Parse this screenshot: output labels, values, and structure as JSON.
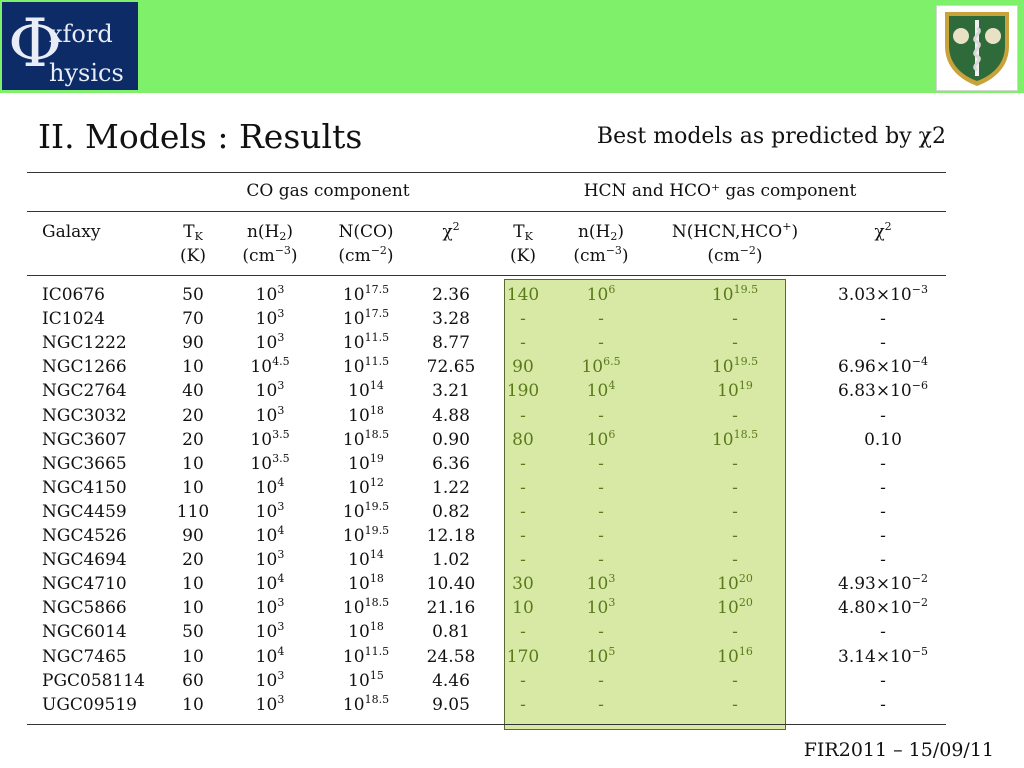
{
  "header": {
    "logo": {
      "phi": "Φ",
      "line1": "xford",
      "line2": "hysics"
    }
  },
  "slide": {
    "title": "II. Models : Results",
    "subtitle": "Best models as predicted by χ2"
  },
  "table": {
    "groups": [
      "CO gas component",
      "HCN and HCO⁺ gas component"
    ],
    "columns": [
      "Galaxy",
      "T_K (K)",
      "n(H2) (cm−3)",
      "N(CO) (cm−2)",
      "χ2",
      "T_K (K)",
      "n(H2) (cm−3)",
      "N(HCN,HCO+) (cm−2)",
      "χ2"
    ],
    "rows": [
      {
        "galaxy": "IC0676",
        "tk": "50",
        "nh2": "3",
        "nco": "17.5",
        "chi": "2.36",
        "tk2": "140",
        "nh22": "6",
        "nhcn": "19.5",
        "chi2m": "3.03",
        "chi2e": "−3"
      },
      {
        "galaxy": "IC1024",
        "tk": "70",
        "nh2": "3",
        "nco": "17.5",
        "chi": "3.28",
        "tk2": "-",
        "nh22": "-",
        "nhcn": "-",
        "chi2m": "-",
        "chi2e": ""
      },
      {
        "galaxy": "NGC1222",
        "tk": "90",
        "nh2": "3",
        "nco": "11.5",
        "chi": "8.77",
        "tk2": "-",
        "nh22": "-",
        "nhcn": "-",
        "chi2m": "-",
        "chi2e": ""
      },
      {
        "galaxy": "NGC1266",
        "tk": "10",
        "nh2": "4.5",
        "nco": "11.5",
        "chi": "72.65",
        "tk2": "90",
        "nh22": "6.5",
        "nhcn": "19.5",
        "chi2m": "6.96",
        "chi2e": "−4"
      },
      {
        "galaxy": "NGC2764",
        "tk": "40",
        "nh2": "3",
        "nco": "14",
        "chi": "3.21",
        "tk2": "190",
        "nh22": "4",
        "nhcn": "19",
        "chi2m": "6.83",
        "chi2e": "−6"
      },
      {
        "galaxy": "NGC3032",
        "tk": "20",
        "nh2": "3",
        "nco": "18",
        "chi": "4.88",
        "tk2": "-",
        "nh22": "-",
        "nhcn": "-",
        "chi2m": "-",
        "chi2e": ""
      },
      {
        "galaxy": "NGC3607",
        "tk": "20",
        "nh2": "3.5",
        "nco": "18.5",
        "chi": "0.90",
        "tk2": "80",
        "nh22": "6",
        "nhcn": "18.5",
        "chi2m": "0.10",
        "chi2e": ""
      },
      {
        "galaxy": "NGC3665",
        "tk": "10",
        "nh2": "3.5",
        "nco": "19",
        "chi": "6.36",
        "tk2": "-",
        "nh22": "-",
        "nhcn": "-",
        "chi2m": "-",
        "chi2e": ""
      },
      {
        "galaxy": "NGC4150",
        "tk": "10",
        "nh2": "4",
        "nco": "12",
        "chi": "1.22",
        "tk2": "-",
        "nh22": "-",
        "nhcn": "-",
        "chi2m": "-",
        "chi2e": ""
      },
      {
        "galaxy": "NGC4459",
        "tk": "110",
        "nh2": "3",
        "nco": "19.5",
        "chi": "0.82",
        "tk2": "-",
        "nh22": "-",
        "nhcn": "-",
        "chi2m": "-",
        "chi2e": ""
      },
      {
        "galaxy": "NGC4526",
        "tk": "90",
        "nh2": "4",
        "nco": "19.5",
        "chi": "12.18",
        "tk2": "-",
        "nh22": "-",
        "nhcn": "-",
        "chi2m": "-",
        "chi2e": ""
      },
      {
        "galaxy": "NGC4694",
        "tk": "20",
        "nh2": "3",
        "nco": "14",
        "chi": "1.02",
        "tk2": "-",
        "nh22": "-",
        "nhcn": "-",
        "chi2m": "-",
        "chi2e": ""
      },
      {
        "galaxy": "NGC4710",
        "tk": "10",
        "nh2": "4",
        "nco": "18",
        "chi": "10.40",
        "tk2": "30",
        "nh22": "3",
        "nhcn": "20",
        "chi2m": "4.93",
        "chi2e": "−2"
      },
      {
        "galaxy": "NGC5866",
        "tk": "10",
        "nh2": "3",
        "nco": "18.5",
        "chi": "21.16",
        "tk2": "10",
        "nh22": "3",
        "nhcn": "20",
        "chi2m": "4.80",
        "chi2e": "−2"
      },
      {
        "galaxy": "NGC6014",
        "tk": "50",
        "nh2": "3",
        "nco": "18",
        "chi": "0.81",
        "tk2": "-",
        "nh22": "-",
        "nhcn": "-",
        "chi2m": "-",
        "chi2e": ""
      },
      {
        "galaxy": "NGC7465",
        "tk": "10",
        "nh2": "4",
        "nco": "11.5",
        "chi": "24.58",
        "tk2": "170",
        "nh22": "5",
        "nhcn": "16",
        "chi2m": "3.14",
        "chi2e": "−5"
      },
      {
        "galaxy": "PGC058114",
        "tk": "60",
        "nh2": "3",
        "nco": "15",
        "chi": "4.46",
        "tk2": "-",
        "nh22": "-",
        "nhcn": "-",
        "chi2m": "-",
        "chi2e": ""
      },
      {
        "galaxy": "UGC09519",
        "tk": "10",
        "nh2": "3",
        "nco": "18.5",
        "chi": "9.05",
        "tk2": "-",
        "nh22": "-",
        "nhcn": "-",
        "chi2m": "-",
        "chi2e": ""
      }
    ]
  },
  "footer": {
    "text": "FIR2011 – 15/09/11"
  },
  "colors": {
    "banner": "#7ef06a",
    "logo_bg": "#0d2b66",
    "highlight": "#d8e9a6",
    "highlight_text": "#5a7a1a"
  }
}
